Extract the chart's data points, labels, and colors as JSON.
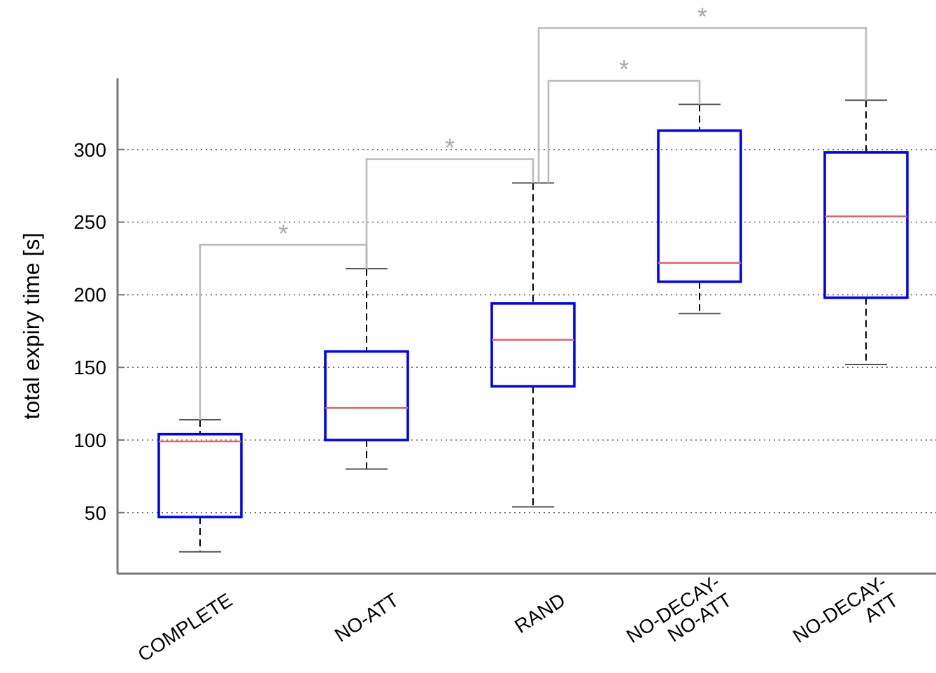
{
  "chart_data": {
    "type": "box",
    "ylabel": "total expiry time [s]",
    "categories": [
      "COMPLETE",
      "NO-ATT",
      "RAND",
      "NO-DECAY-\nNO-ATT",
      "NO-DECAY-\nATT"
    ],
    "ylim": [
      8,
      349
    ],
    "yticks": [
      50,
      100,
      150,
      200,
      250,
      300
    ],
    "grid": "y",
    "series": [
      {
        "color": "#0000ff",
        "boxes": [
          {
            "low": 23,
            "q1": 47,
            "median": 99,
            "q3": 104,
            "high": 114
          },
          {
            "low": 80,
            "q1": 100,
            "median": 122,
            "q3": 161,
            "high": 218
          },
          {
            "low": 54,
            "q1": 137,
            "median": 169,
            "q3": 194,
            "high": 277
          },
          {
            "low": 187,
            "q1": 209,
            "median": 222,
            "q3": 313,
            "high": 331
          },
          {
            "low": 152,
            "q1": 198,
            "median": 254,
            "q3": 298,
            "high": 334
          }
        ]
      }
    ],
    "annotations": [
      "*",
      "*",
      "*",
      "*"
    ]
  }
}
